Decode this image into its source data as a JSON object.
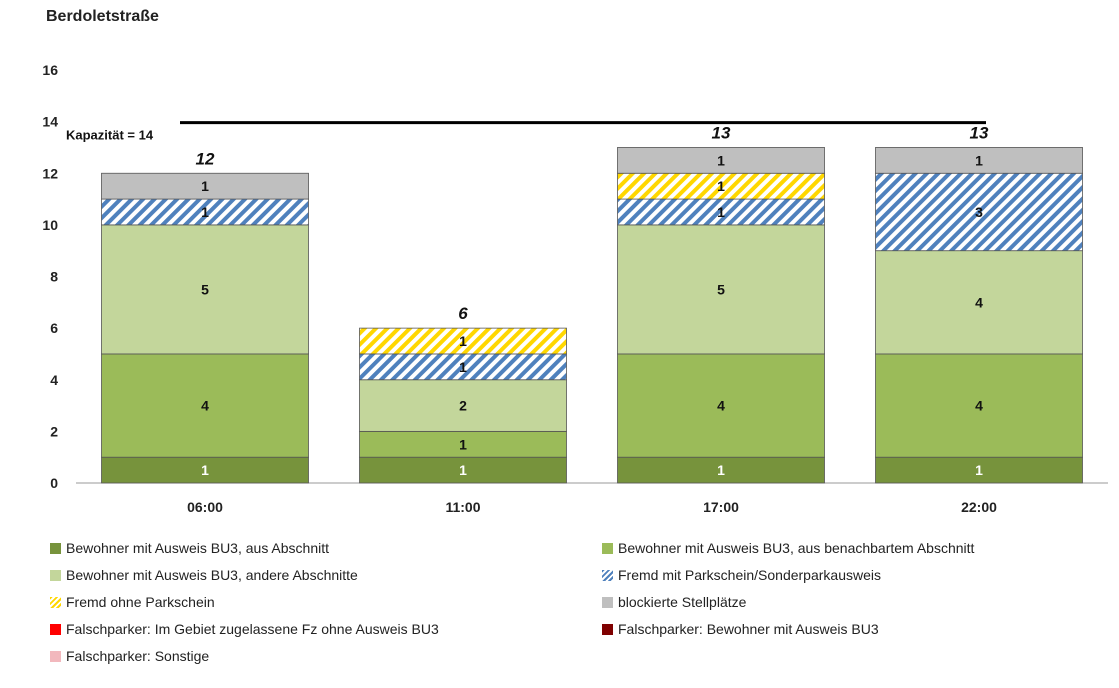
{
  "chart_data": {
    "type": "bar",
    "stacked": true,
    "title": "Berdoletstraße",
    "xlabel": "",
    "ylabel": "",
    "ylim": [
      0,
      16
    ],
    "yticks": [
      0,
      2,
      4,
      6,
      8,
      10,
      12,
      14,
      16
    ],
    "grid": false,
    "categories": [
      "06:00",
      "11:00",
      "17:00",
      "22:00"
    ],
    "series": [
      {
        "name": "Bewohner mit Ausweis BU3, aus Abschnitt",
        "values": [
          1,
          1,
          1,
          1
        ],
        "color": "#77933c",
        "pattern": "solid",
        "label_color": "#ffffff"
      },
      {
        "name": "Bewohner mit Ausweis BU3, aus benachbartem Abschnitt",
        "values": [
          4,
          1,
          4,
          4
        ],
        "color": "#9bbb59",
        "pattern": "solid",
        "label_color": "#111111"
      },
      {
        "name": "Bewohner mit Ausweis BU3, andere Abschnitte",
        "values": [
          5,
          2,
          5,
          4
        ],
        "color": "#c3d69b",
        "pattern": "solid",
        "label_color": "#111111"
      },
      {
        "name": "Fremd mit Parkschein/Sonderparkausweis",
        "values": [
          1,
          1,
          1,
          3
        ],
        "color": "#4f81bd",
        "pattern": "hatch",
        "label_color": "#111111"
      },
      {
        "name": "Fremd ohne Parkschein",
        "values": [
          0,
          1,
          1,
          0
        ],
        "color": "#ffd700",
        "pattern": "hatch",
        "label_color": "#111111"
      },
      {
        "name": "blockierte Stellplätze",
        "values": [
          1,
          0,
          1,
          1
        ],
        "color": "#bfbfbf",
        "pattern": "solid",
        "label_color": "#111111"
      },
      {
        "name": "Falschparker: Im Gebiet zugelassene Fz ohne Ausweis BU3",
        "values": [
          0,
          0,
          0,
          0
        ],
        "color": "#ff0000",
        "pattern": "solid",
        "label_color": "#111111"
      },
      {
        "name": "Falschparker: Bewohner mit Ausweis BU3",
        "values": [
          0,
          0,
          0,
          0
        ],
        "color": "#7f0000",
        "pattern": "solid",
        "label_color": "#111111"
      },
      {
        "name": "Falschparker: Sonstige",
        "values": [
          0,
          0,
          0,
          0
        ],
        "color": "#f2b8bd",
        "pattern": "solid",
        "label_color": "#111111"
      }
    ],
    "totals": [
      12,
      6,
      13,
      13
    ],
    "capacity": {
      "value": 14,
      "label": "Kapazität = 14",
      "color": "#000000"
    },
    "legend_position": "bottom"
  }
}
